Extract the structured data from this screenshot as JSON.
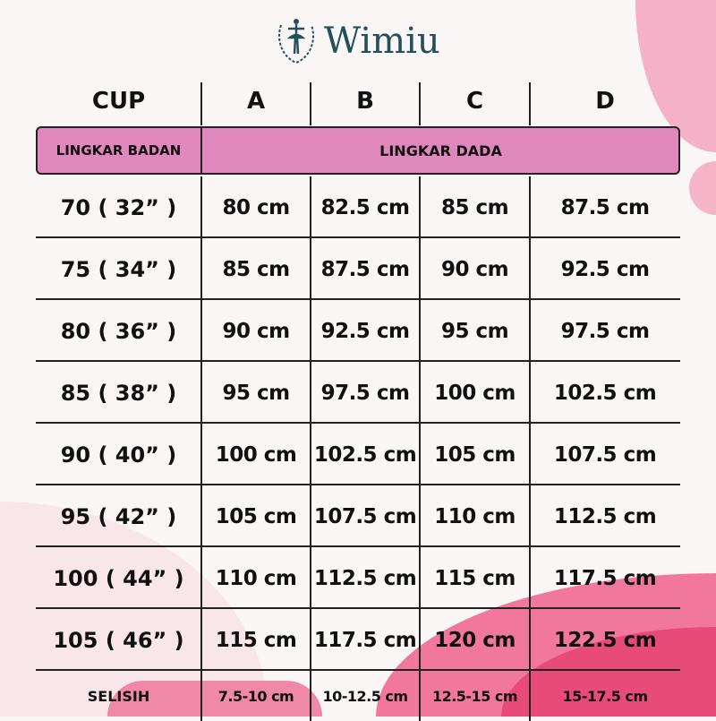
{
  "brand": {
    "name": "Wimiu",
    "logo_icon": "ballerina-wreath-icon",
    "color": "#24505e"
  },
  "colors": {
    "band": "#e088bd",
    "accent": "#f06a92"
  },
  "header": {
    "label": "CUP",
    "cups": [
      "A",
      "B",
      "C",
      "D"
    ]
  },
  "subheader": {
    "left": "LINGKAR BADAN",
    "right": "LINGKAR DADA"
  },
  "rows": [
    {
      "size": "70 ( 32” )",
      "values": [
        "80 cm",
        "82.5 cm",
        "85 cm",
        "87.5 cm"
      ]
    },
    {
      "size": "75 ( 34” )",
      "values": [
        "85 cm",
        "87.5 cm",
        "90 cm",
        "92.5 cm"
      ]
    },
    {
      "size": "80 ( 36” )",
      "values": [
        "90 cm",
        "92.5 cm",
        "95 cm",
        "97.5 cm"
      ]
    },
    {
      "size": "85 ( 38” )",
      "values": [
        "95 cm",
        "97.5 cm",
        "100 cm",
        "102.5 cm"
      ]
    },
    {
      "size": "90 ( 40” )",
      "values": [
        "100 cm",
        "102.5 cm",
        "105 cm",
        "107.5 cm"
      ]
    },
    {
      "size": "95 ( 42” )",
      "values": [
        "105 cm",
        "107.5 cm",
        "110 cm",
        "112.5 cm"
      ]
    },
    {
      "size": "100 ( 44” )",
      "values": [
        "110 cm",
        "112.5 cm",
        "115 cm",
        "117.5 cm"
      ]
    },
    {
      "size": "105 ( 46” )",
      "values": [
        "115 cm",
        "117.5 cm",
        "120 cm",
        "122.5 cm"
      ]
    }
  ],
  "difference": {
    "label": "SELISIH",
    "values": [
      "7.5-10 cm",
      "10-12.5 cm",
      "12.5-15 cm",
      "15-17.5 cm"
    ]
  }
}
